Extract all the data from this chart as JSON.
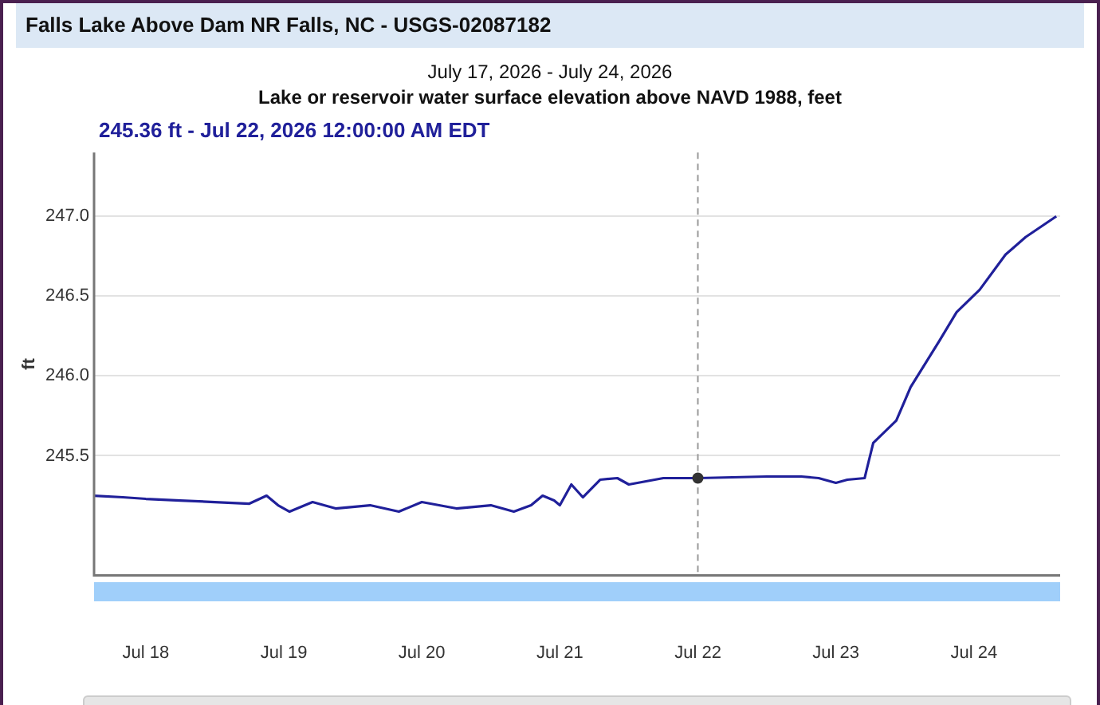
{
  "chart_data": {
    "type": "line",
    "title": "Falls Lake Above Dam NR Falls, NC - USGS-02087182",
    "subtitle": "July 17, 2026 - July 24, 2026",
    "annotations": [
      "Lake or reservoir water surface elevation above NAVD 1988, feet",
      "245.36 ft - Jul 22, 2026 12:00:00 AM EDT"
    ],
    "ylabel": "ft",
    "x": [
      "2026-07-17T15:00",
      "2026-07-17T20:00",
      "2026-07-18T00:00",
      "2026-07-18T06:00",
      "2026-07-18T12:00",
      "2026-07-18T18:00",
      "2026-07-18T21:00",
      "2026-07-18T23:00",
      "2026-07-19T01:00",
      "2026-07-19T03:00",
      "2026-07-19T05:00",
      "2026-07-19T09:00",
      "2026-07-19T15:00",
      "2026-07-19T20:00",
      "2026-07-20T00:00",
      "2026-07-20T03:00",
      "2026-07-20T06:00",
      "2026-07-20T12:00",
      "2026-07-20T16:00",
      "2026-07-20T19:00",
      "2026-07-20T21:00",
      "2026-07-20T23:00",
      "2026-07-21T00:00",
      "2026-07-21T02:00",
      "2026-07-21T04:00",
      "2026-07-21T07:00",
      "2026-07-21T10:00",
      "2026-07-21T12:00",
      "2026-07-21T18:00",
      "2026-07-22T00:00",
      "2026-07-22T12:00",
      "2026-07-22T18:00",
      "2026-07-22T21:00",
      "2026-07-23T00:00",
      "2026-07-23T02:00",
      "2026-07-23T05:00",
      "2026-07-23T05:20",
      "2026-07-23T06:30",
      "2026-07-23T10:30",
      "2026-07-23T13:00",
      "2026-07-23T18:00",
      "2026-07-23T21:00",
      "2026-07-24T01:00",
      "2026-07-24T05:30",
      "2026-07-24T09:00",
      "2026-07-24T14:20"
    ],
    "series": [
      {
        "color": "#20209a",
        "values": [
          245.25,
          245.24,
          245.23,
          245.22,
          245.21,
          245.2,
          245.25,
          245.19,
          245.15,
          245.18,
          245.21,
          245.17,
          245.19,
          245.15,
          245.21,
          245.19,
          245.17,
          245.19,
          245.15,
          245.19,
          245.25,
          245.22,
          245.19,
          245.32,
          245.24,
          245.35,
          245.36,
          245.32,
          245.36,
          245.36,
          245.37,
          245.37,
          245.36,
          245.33,
          245.35,
          245.36,
          245.41,
          245.58,
          245.72,
          245.93,
          246.22,
          246.4,
          246.54,
          246.76,
          246.87,
          247.0
        ]
      }
    ],
    "xlim": [
      "2026-07-17T15:00",
      "2026-07-24T15:00"
    ],
    "xticks": [
      {
        "value": "2026-07-18",
        "label": "Jul 18"
      },
      {
        "value": "2026-07-19",
        "label": "Jul 19"
      },
      {
        "value": "2026-07-20",
        "label": "Jul 20"
      },
      {
        "value": "2026-07-21",
        "label": "Jul 21"
      },
      {
        "value": "2026-07-22",
        "label": "Jul 22"
      },
      {
        "value": "2026-07-23",
        "label": "Jul 23"
      },
      {
        "value": "2026-07-24",
        "label": "Jul 24"
      }
    ],
    "ylim": [
      244.75,
      247.4
    ],
    "yticks": [
      245.5,
      {
        "value": 246,
        "label": "246.0"
      },
      246.5,
      {
        "value": 247,
        "label": "247.0"
      }
    ],
    "ref_lines": [
      {
        "axis": "x",
        "value": "2026-07-22T00:00",
        "color": "#999999",
        "line_style": "dashed"
      }
    ],
    "grid": "y",
    "legend": false,
    "marker": "none",
    "line_style": "solid"
  }
}
